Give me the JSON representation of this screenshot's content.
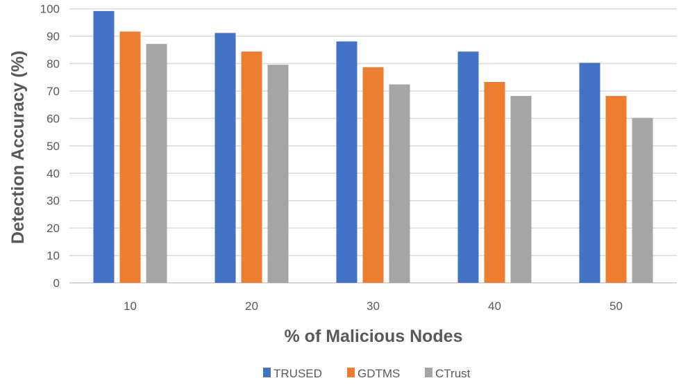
{
  "chart_data": {
    "type": "bar",
    "title": "",
    "xlabel": "% of Malicious Nodes",
    "ylabel": "Detection Accuracy (%)",
    "ylim": [
      0,
      100
    ],
    "yticks": [
      0,
      10,
      20,
      30,
      40,
      50,
      60,
      70,
      80,
      90,
      100
    ],
    "grid": true,
    "legend_position": "bottom",
    "categories": [
      "10",
      "20",
      "30",
      "40",
      "50"
    ],
    "series": [
      {
        "name": "TRUSED",
        "color": "#4472C4",
        "values": [
          99.2,
          91.2,
          88.1,
          84.4,
          80.3
        ]
      },
      {
        "name": "GDTMS",
        "color": "#ED7D31",
        "values": [
          91.7,
          84.4,
          78.7,
          73.3,
          68.2
        ]
      },
      {
        "name": "CTrust",
        "color": "#A5A5A5",
        "values": [
          87.2,
          79.6,
          72.4,
          68.2,
          60.2
        ]
      }
    ]
  }
}
